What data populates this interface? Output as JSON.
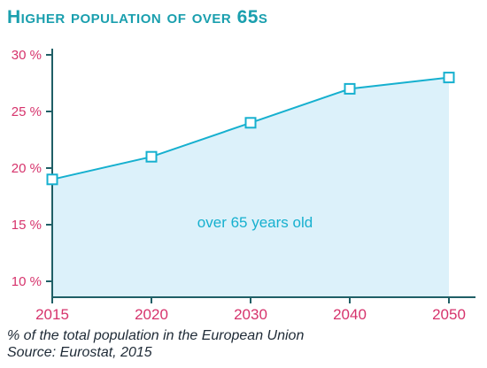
{
  "title": "Higher population of over 65s",
  "notes": {
    "line1": "% of the total population in the European Union",
    "line2": "Source: Eurostat, 2015"
  },
  "colors": {
    "title": "#1a9fae",
    "axis": "#1f5f66",
    "y_ticks": "#d6336c",
    "x_ticks": "#d6336c",
    "line": "#16b0cf",
    "area": "#dcf1fa",
    "annotation": "#16b0cf"
  },
  "chart_data": {
    "type": "area",
    "categories": [
      "2015",
      "2020",
      "2030",
      "2040",
      "2050"
    ],
    "series": [
      {
        "name": "",
        "values": [
          19,
          21,
          24,
          27,
          28
        ]
      }
    ],
    "ylim": [
      10,
      30
    ],
    "y_ticks": [
      10,
      15,
      20,
      25,
      30
    ],
    "y_tick_labels": [
      "10 %",
      "15 %",
      "20 %",
      "25 %",
      "30 %"
    ],
    "annotation": "over 65 years old",
    "grid": false,
    "xlabel": "",
    "ylabel": ""
  }
}
